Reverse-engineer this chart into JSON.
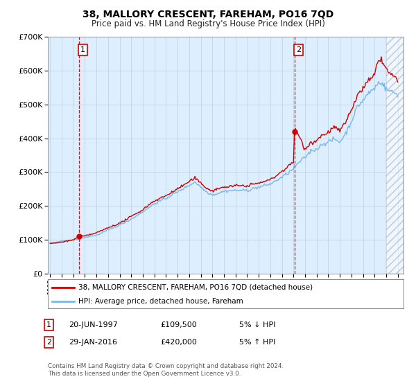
{
  "title": "38, MALLORY CRESCENT, FAREHAM, PO16 7QD",
  "subtitle": "Price paid vs. HM Land Registry's House Price Index (HPI)",
  "sale1_date": "20-JUN-1997",
  "sale1_price": 109500,
  "sale1_year": 1997.47,
  "sale2_date": "29-JAN-2016",
  "sale2_price": 420000,
  "sale2_year": 2016.08,
  "legend_line1": "38, MALLORY CRESCENT, FAREHAM, PO16 7QD (detached house)",
  "legend_line2": "HPI: Average price, detached house, Fareham",
  "footer": "Contains HM Land Registry data © Crown copyright and database right 2024.\nThis data is licensed under the Open Government Licence v3.0.",
  "hpi_color": "#7ab8e8",
  "price_color": "#cc0000",
  "bg_color": "#ddeeff",
  "grid_color": "#b8cfe0",
  "hatch_start": 2024.0,
  "ylim": [
    0,
    700000
  ],
  "xlim_start": 1994.8,
  "xlim_end": 2025.5,
  "hpi_keypoints_x": [
    1995,
    1996,
    1997,
    1997.47,
    1998,
    1999,
    2000,
    2001,
    2002,
    2003,
    2004,
    2005,
    2006,
    2007,
    2007.5,
    2008,
    2008.5,
    2009,
    2009.5,
    2010,
    2011,
    2012,
    2013,
    2014,
    2015,
    2016,
    2016.08,
    2017,
    2017.5,
    2018,
    2018.5,
    2019,
    2019.5,
    2020,
    2020.5,
    2021,
    2021.5,
    2022,
    2022.5,
    2023,
    2023.3,
    2023.5,
    2023.8,
    2024,
    2024.3,
    2024.6,
    2025
  ],
  "hpi_keypoints_y": [
    90000,
    95000,
    100000,
    103000,
    108000,
    115000,
    130000,
    145000,
    163000,
    185000,
    210000,
    225000,
    245000,
    265000,
    275000,
    260000,
    245000,
    235000,
    240000,
    245000,
    248000,
    248000,
    255000,
    265000,
    285000,
    310000,
    315000,
    345000,
    365000,
    370000,
    385000,
    390000,
    400000,
    390000,
    415000,
    450000,
    490000,
    510000,
    530000,
    545000,
    560000,
    565000,
    555000,
    545000,
    540000,
    535000,
    530000
  ],
  "price_keypoints_x": [
    1995,
    1996,
    1997,
    1997.47,
    1998,
    1999,
    2000,
    2001,
    2002,
    2003,
    2004,
    2005,
    2006,
    2007,
    2007.5,
    2008,
    2008.5,
    2009,
    2009.5,
    2010,
    2011,
    2012,
    2013,
    2014,
    2015,
    2016,
    2016.08,
    2017,
    2017.5,
    2018,
    2018.5,
    2019,
    2019.5,
    2020,
    2020.5,
    2021,
    2021.5,
    2022,
    2022.5,
    2023,
    2023.3,
    2023.5,
    2023.8,
    2024,
    2024.3,
    2024.6,
    2025
  ],
  "price_keypoints_y": [
    88000,
    93000,
    100000,
    109500,
    112000,
    120000,
    135000,
    148000,
    168000,
    188000,
    213000,
    228000,
    248000,
    268000,
    278000,
    263000,
    248000,
    238000,
    243000,
    248000,
    250000,
    250000,
    258000,
    268000,
    290000,
    315000,
    420000,
    355000,
    375000,
    380000,
    395000,
    400000,
    415000,
    402000,
    425000,
    462000,
    500000,
    520000,
    540000,
    555000,
    600000,
    605000,
    590000,
    575000,
    565000,
    555000,
    545000
  ]
}
